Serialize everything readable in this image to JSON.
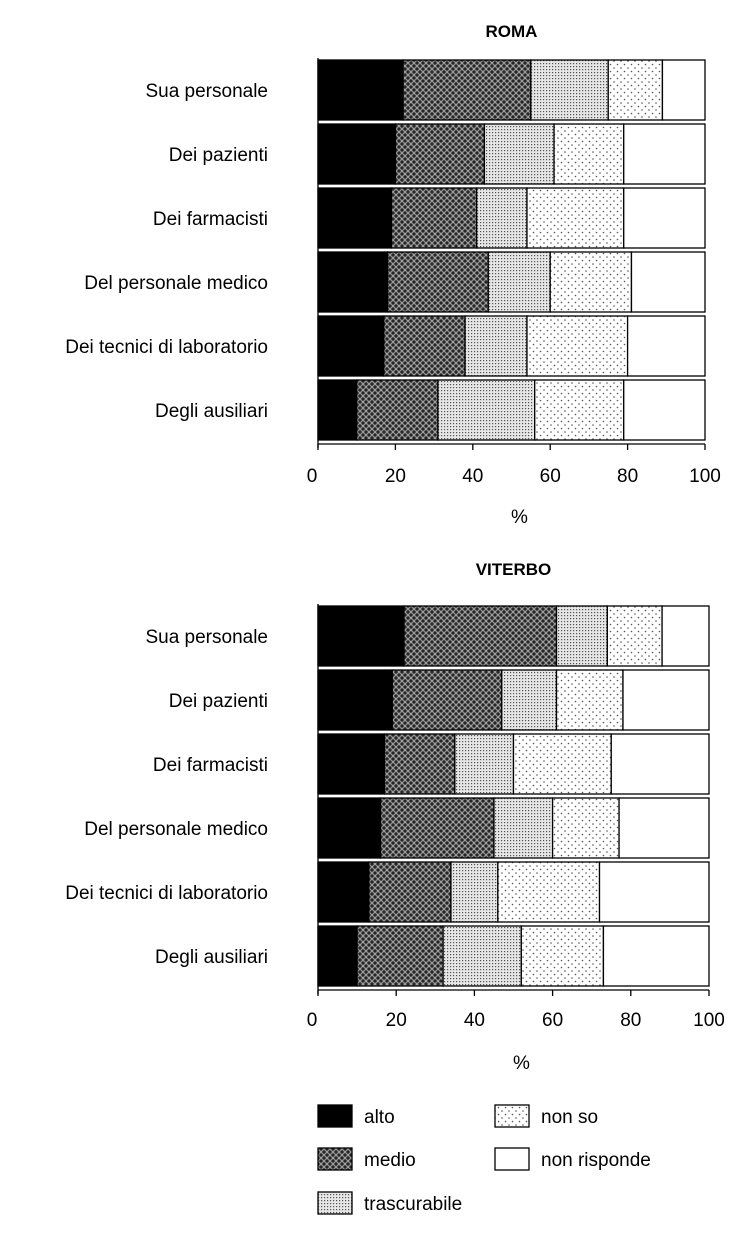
{
  "chart_data": [
    {
      "type": "bar",
      "stacked": true,
      "orientation": "horizontal",
      "title": "ROMA",
      "xlabel": "%",
      "xlim": [
        0,
        100
      ],
      "xticks": [
        0,
        20,
        40,
        60,
        80,
        100
      ],
      "categories": [
        "Sua personale",
        "Dei pazienti",
        "Dei farmacisti",
        "Del personale medico",
        "Dei tecnici di laboratorio",
        "Degli ausiliari"
      ],
      "series": [
        {
          "name": "alto",
          "values": [
            22,
            20,
            19,
            18,
            17,
            10
          ]
        },
        {
          "name": "medio",
          "values": [
            33,
            23,
            22,
            26,
            21,
            21
          ]
        },
        {
          "name": "trascurabile",
          "values": [
            20,
            18,
            13,
            16,
            16,
            25
          ]
        },
        {
          "name": "non so",
          "values": [
            14,
            18,
            25,
            21,
            26,
            23
          ]
        },
        {
          "name": "non risponde",
          "values": [
            11,
            21,
            21,
            19,
            20,
            21
          ]
        }
      ]
    },
    {
      "type": "bar",
      "stacked": true,
      "orientation": "horizontal",
      "title": "VITERBO",
      "xlabel": "%",
      "xlim": [
        0,
        100
      ],
      "xticks": [
        0,
        20,
        40,
        60,
        80,
        100
      ],
      "categories": [
        "Sua personale",
        "Dei pazienti",
        "Dei farmacisti",
        "Del personale medico",
        "Dei tecnici di laboratorio",
        "Degli ausiliari"
      ],
      "series": [
        {
          "name": "alto",
          "values": [
            22,
            19,
            17,
            16,
            13,
            10
          ]
        },
        {
          "name": "medio",
          "values": [
            39,
            28,
            18,
            29,
            21,
            22
          ]
        },
        {
          "name": "trascurabile",
          "values": [
            13,
            14,
            15,
            15,
            12,
            20
          ]
        },
        {
          "name": "non so",
          "values": [
            14,
            17,
            25,
            17,
            26,
            21
          ]
        },
        {
          "name": "non risponde",
          "values": [
            12,
            22,
            25,
            23,
            28,
            27
          ]
        }
      ]
    }
  ],
  "legend": [
    {
      "name": "alto",
      "pattern": "solid"
    },
    {
      "name": "medio",
      "pattern": "crosshatch"
    },
    {
      "name": "trascurabile",
      "pattern": "dense-dots"
    },
    {
      "name": "non so",
      "pattern": "sparse-dots"
    },
    {
      "name": "non risponde",
      "pattern": "empty"
    }
  ]
}
